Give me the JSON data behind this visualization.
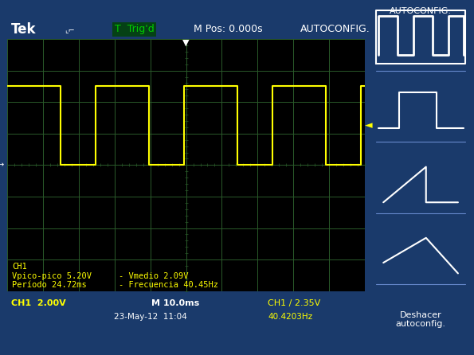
{
  "bg_outer": "#1a3a6b",
  "bg_screen": "#000000",
  "bg_sidebar": "#2244aa",
  "grid_color": "#2a5a2a",
  "signal_color": "#ffff00",
  "text_color_white": "#ffffff",
  "text_color_yellow": "#ffff00",
  "text_color_green": "#00cc00",
  "text_color_cyan": "#00ffff",
  "grid_cols": 10,
  "grid_rows": 8,
  "top_bar_text": {
    "tek": "Tek",
    "trigger": "T  Trig'd",
    "mpos": "M Pos: 0.000s",
    "autoconfig": "AUTOCONFIG."
  },
  "bottom_bar": {
    "ch1_scale": "CH1  2.00V",
    "time_scale": "M 10.0ms",
    "ch1_trigger": "CH1 ∕ 2.35V",
    "date": "23-May-12  11:04",
    "freq": "40.4203Hz"
  },
  "measurements": {
    "line1": "CH1",
    "line2": "Vpico-pico 5.20V",
    "line3": "Período 24.72ms",
    "line4": "Vmedio 2.09V",
    "line5": "Frecuencia 40.45Hz"
  },
  "signal": {
    "period_ms": 24.72,
    "duty_cycle": 0.6,
    "time_scale_ms": 10,
    "total_divs": 10,
    "high_level": 6.5,
    "low_level": 4.0
  },
  "figsize": [
    5.95,
    4.46
  ],
  "dpi": 100
}
